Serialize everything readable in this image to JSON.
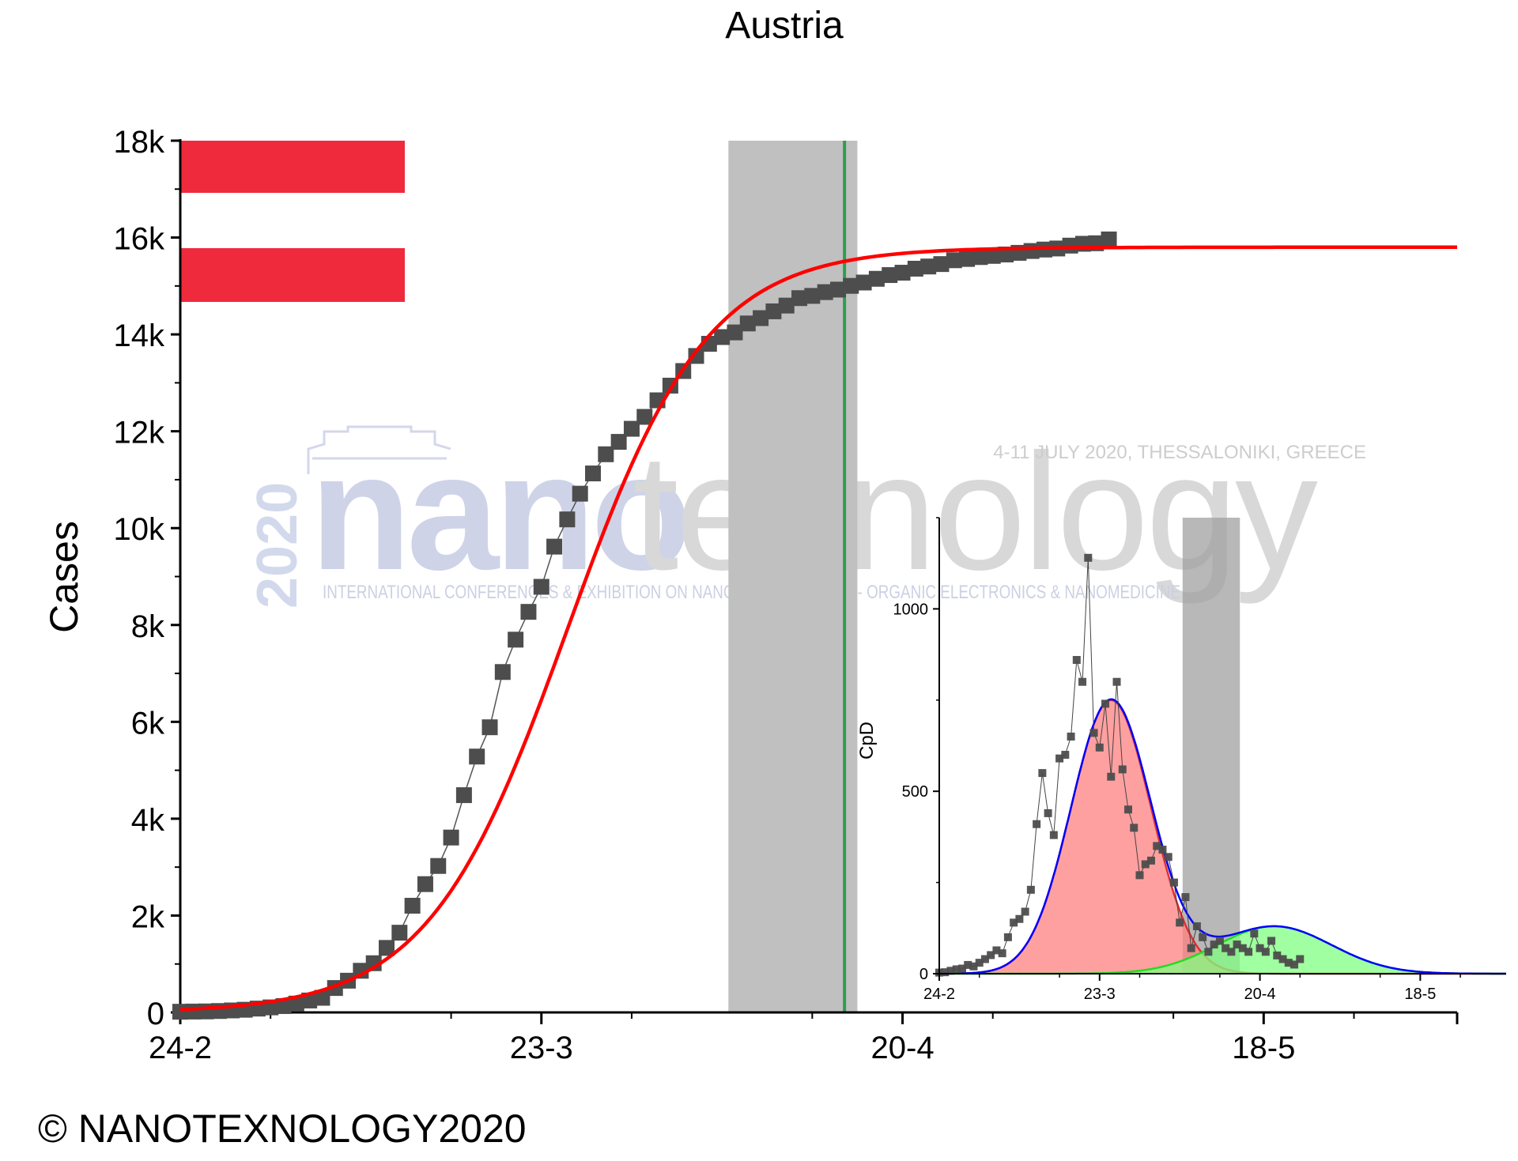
{
  "copyright": "© NANOTEXNOLOGY2020",
  "watermark": {
    "year": "2020",
    "brand_a": "nano",
    "brand_b": "texnology",
    "event": "4-11 JULY 2020, THESSALONIKI, GREECE",
    "subtitle": "INTERNATIONAL CONFERENCES & EXHIBITION ON NANOTECHNOLOGIES - ORGANIC ELECTRONICS & NANOMEDICINE"
  },
  "colors": {
    "data_points": "#4d4d4d",
    "fit_curve": "#ff0000",
    "shade": "#c0c0c0",
    "marker_line": "#2e9e4f",
    "flag_red": "#ee2a3c",
    "gauss_blue": "#0000ff",
    "gauss_red_fill": "#ff8080",
    "gauss_green_fill": "#80ff80"
  },
  "chart_data": [
    {
      "type": "scatter",
      "title": "Austria",
      "ylabel": "Cases",
      "xlabel": "",
      "x_ticks": [
        "24-2",
        "23-3",
        "20-4",
        "18-5"
      ],
      "x_tick_days": [
        0,
        28,
        56,
        84
      ],
      "xlim_days": [
        0,
        99
      ],
      "y_ticks": [
        "0",
        "2k",
        "4k",
        "6k",
        "8k",
        "10k",
        "12k",
        "14k",
        "16k",
        "18k"
      ],
      "ylim": [
        0,
        18000
      ],
      "legend": "none",
      "flag": "Austria (top-left)",
      "shaded_band_days": [
        42.5,
        52.5
      ],
      "vertical_line_day": 51.5,
      "series": [
        {
          "kind": "points",
          "points": [
            [
              0,
              14
            ],
            [
              1,
              18
            ],
            [
              2,
              21
            ],
            [
              3,
              29
            ],
            [
              4,
              41
            ],
            [
              5,
              55
            ],
            [
              6,
              79
            ],
            [
              7,
              104
            ],
            [
              8,
              131
            ],
            [
              9,
              182
            ],
            [
              10,
              246
            ],
            [
              11,
              302
            ],
            [
              12,
              504
            ],
            [
              13,
              655
            ],
            [
              14,
              860
            ],
            [
              15,
              1016
            ],
            [
              16,
              1332
            ],
            [
              17,
              1646
            ],
            [
              18,
              2203
            ],
            [
              19,
              2649
            ],
            [
              20,
              3024
            ],
            [
              21,
              3611
            ],
            [
              22,
              4486
            ],
            [
              23,
              5283
            ],
            [
              24,
              5888
            ],
            [
              25,
              7029
            ],
            [
              26,
              7697
            ],
            [
              27,
              8271
            ],
            [
              28,
              8788
            ],
            [
              29,
              9618
            ],
            [
              30,
              10180
            ],
            [
              31,
              10711
            ],
            [
              32,
              11129
            ],
            [
              33,
              11525
            ],
            [
              34,
              11781
            ],
            [
              35,
              12051
            ],
            [
              36,
              12297
            ],
            [
              37,
              12639
            ],
            [
              38,
              12942
            ],
            [
              39,
              13244
            ],
            [
              40,
              13555
            ],
            [
              41,
              13806
            ],
            [
              42,
              13945
            ],
            [
              43,
              14041
            ],
            [
              44,
              14226
            ],
            [
              45,
              14336
            ],
            [
              46,
              14476
            ],
            [
              47,
              14595
            ],
            [
              48,
              14749
            ],
            [
              49,
              14795
            ],
            [
              50,
              14873
            ],
            [
              51,
              14925
            ],
            [
              52,
              15002
            ],
            [
              53,
              15071
            ],
            [
              54,
              15148
            ],
            [
              55,
              15225
            ],
            [
              56,
              15274
            ],
            [
              57,
              15357
            ],
            [
              58,
              15402
            ],
            [
              59,
              15452
            ],
            [
              60,
              15531
            ],
            [
              61,
              15558
            ],
            [
              62,
              15597
            ],
            [
              63,
              15621
            ],
            [
              64,
              15650
            ],
            [
              65,
              15684
            ],
            [
              66,
              15722
            ],
            [
              67,
              15752
            ],
            [
              68,
              15774
            ],
            [
              69,
              15833
            ],
            [
              70,
              15871
            ],
            [
              71,
              15882
            ],
            [
              72,
              15961
            ]
          ]
        },
        {
          "kind": "logistic-fit",
          "L": 15800,
          "x0_day": 30,
          "k": 0.185
        }
      ]
    },
    {
      "type": "scatter",
      "title": "",
      "ylabel": "CpD",
      "xlabel": "",
      "x_ticks": [
        "24-2",
        "23-3",
        "20-4",
        "18-5"
      ],
      "x_tick_days": [
        0,
        28,
        56,
        84
      ],
      "xlim_days": [
        0,
        99
      ],
      "y_ticks": [
        "0",
        "500",
        "1000"
      ],
      "ylim": [
        0,
        1250
      ],
      "legend": "none",
      "shaded_band_days": [
        42.5,
        52.5
      ],
      "series": [
        {
          "kind": "points",
          "points": [
            [
              0,
              3
            ],
            [
              1,
              4
            ],
            [
              2,
              8
            ],
            [
              3,
              12
            ],
            [
              4,
              14
            ],
            [
              5,
              24
            ],
            [
              6,
              20
            ],
            [
              7,
              30
            ],
            [
              8,
              40
            ],
            [
              9,
              51
            ],
            [
              10,
              64
            ],
            [
              11,
              56
            ],
            [
              12,
              100
            ],
            [
              13,
              140
            ],
            [
              14,
              150
            ],
            [
              15,
              170
            ],
            [
              16,
              230
            ],
            [
              17,
              410
            ],
            [
              18,
              550
            ],
            [
              19,
              440
            ],
            [
              20,
              380
            ],
            [
              21,
              590
            ],
            [
              22,
              600
            ],
            [
              23,
              650
            ],
            [
              24,
              860
            ],
            [
              25,
              800
            ],
            [
              26,
              1140
            ],
            [
              27,
              660
            ],
            [
              28,
              620
            ],
            [
              29,
              740
            ],
            [
              30,
              540
            ],
            [
              31,
              800
            ],
            [
              32,
              560
            ],
            [
              33,
              450
            ],
            [
              34,
              400
            ],
            [
              35,
              270
            ],
            [
              36,
              300
            ],
            [
              37,
              310
            ],
            [
              38,
              350
            ],
            [
              39,
              340
            ],
            [
              40,
              320
            ],
            [
              41,
              250
            ],
            [
              42,
              140
            ],
            [
              43,
              210
            ],
            [
              44,
              70
            ],
            [
              45,
              130
            ],
            [
              46,
              100
            ],
            [
              47,
              60
            ],
            [
              48,
              80
            ],
            [
              49,
              90
            ],
            [
              50,
              70
            ],
            [
              51,
              60
            ],
            [
              52,
              80
            ],
            [
              53,
              70
            ],
            [
              54,
              60
            ],
            [
              55,
              110
            ],
            [
              56,
              70
            ],
            [
              57,
              60
            ],
            [
              58,
              90
            ],
            [
              59,
              50
            ],
            [
              60,
              40
            ],
            [
              61,
              30
            ],
            [
              62,
              25
            ],
            [
              63,
              40
            ]
          ]
        },
        {
          "kind": "gaussian",
          "name": "",
          "amplitude": 750,
          "center_day": 30,
          "sigma": 7
        },
        {
          "kind": "gaussian",
          "name": "",
          "amplitude": 130,
          "center_day": 58.5,
          "sigma": 10
        }
      ]
    }
  ]
}
